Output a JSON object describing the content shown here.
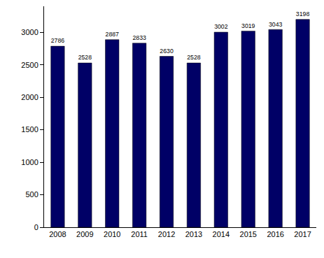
{
  "chart_data": {
    "type": "bar",
    "categories": [
      "2008",
      "2009",
      "2010",
      "2011",
      "2012",
      "2013",
      "2014",
      "2015",
      "2016",
      "2017"
    ],
    "values": [
      2786,
      2528,
      2887,
      2833,
      2630,
      2528,
      3002,
      3019,
      3043,
      3198
    ],
    "color": "#000066",
    "ylim": [
      0,
      3400
    ],
    "yticks": [
      0,
      500,
      1000,
      1500,
      2000,
      2500,
      3000
    ],
    "grid": false,
    "data_labels": true
  }
}
